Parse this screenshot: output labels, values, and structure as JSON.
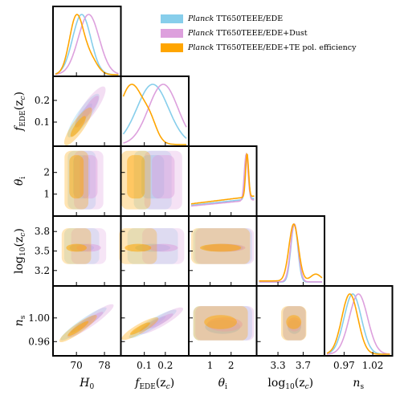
{
  "chart_data": {
    "type": "triangle-corner-plot",
    "parameters": [
      {
        "key": "H0",
        "label_main": "H",
        "label_sub": "0",
        "range": [
          64,
          82
        ],
        "ticks": [
          70,
          78
        ]
      },
      {
        "key": "fEDE",
        "label_main": "f",
        "label_sub": "EDE",
        "label_tail": "(z",
        "label_tail_sub": "c",
        "label_end": ")",
        "range": [
          0.0,
          0.3
        ],
        "ticks": [
          0.1,
          0.2
        ]
      },
      {
        "key": "theta_i",
        "label_main": "θ",
        "label_sub": "i",
        "range": [
          0.1,
          3.1
        ],
        "ticks": [
          1,
          2
        ]
      },
      {
        "key": "log10zc",
        "label_main": "log",
        "label_sub": "10",
        "label_tail": "(z",
        "label_tail_sub": "c",
        "label_end": ")",
        "range": [
          3.0,
          4.0
        ],
        "ticks": [
          3.3,
          3.7
        ],
        "yticks": [
          3.2,
          3.5,
          3.8
        ]
      },
      {
        "key": "ns",
        "label_main": "n",
        "label_sub": "s",
        "range": [
          0.94,
          1.05
        ],
        "ticks": [
          0.97,
          1.02
        ],
        "yticks": [
          0.96,
          1.0
        ]
      }
    ],
    "tick_labels": {
      "H0": [
        "70",
        "78"
      ],
      "fEDE_x": [
        "0.1",
        "0.2"
      ],
      "fEDE_y": [
        "0.1",
        "0.2"
      ],
      "theta_i": [
        "1",
        "2"
      ],
      "log10zc_x": [
        "3.3",
        "3.7"
      ],
      "log10zc_y": [
        "3.2",
        "3.5",
        "3.8"
      ],
      "ns_x": [
        "0.97",
        "1.02"
      ],
      "ns_y": [
        "0.96",
        "1.00"
      ]
    },
    "series": [
      {
        "name_italic": "Planck",
        "name_rest": " TT650TEEE/EDE",
        "color": "#87ceeb",
        "peaks": {
          "H0": 71.5,
          "fEDE": 0.14,
          "theta_i": 2.75,
          "log10zc": 3.56,
          "ns": 0.985
        }
      },
      {
        "name_italic": "Planck",
        "name_rest": " TT650TEEE/EDE+Dust",
        "color": "#dda0dd",
        "peaks": {
          "H0": 73.5,
          "fEDE": 0.19,
          "theta_i": 2.7,
          "log10zc": 3.56,
          "ns": 0.995
        }
      },
      {
        "name_italic": "Planck",
        "name_rest": " TT650TEEE/EDE+TE pol. efficiency",
        "color": "#ffa500",
        "peaks": {
          "H0": 70.0,
          "fEDE": 0.04,
          "theta_i": 2.75,
          "log10zc": 3.55,
          "ns": 0.98
        }
      }
    ],
    "legend_position": "top-right"
  }
}
